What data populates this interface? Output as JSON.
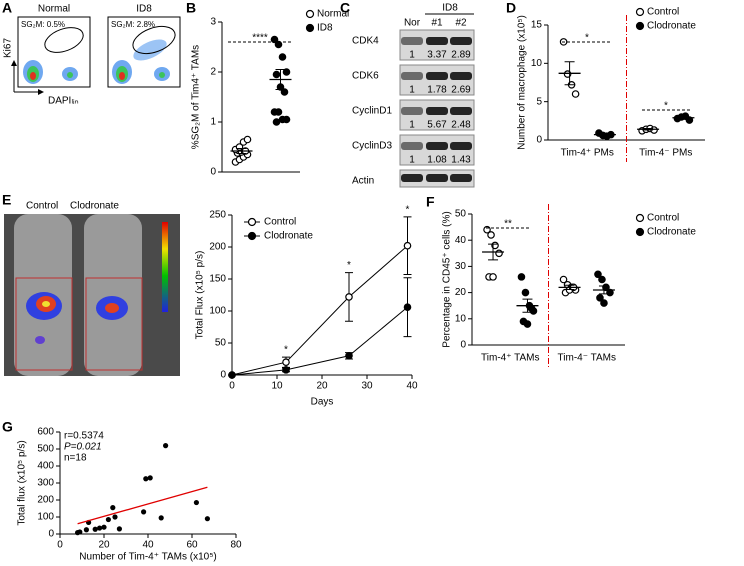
{
  "panel_labels": [
    "A",
    "B",
    "C",
    "D",
    "E",
    "F",
    "G"
  ],
  "flow": {
    "plots": [
      {
        "title": "Normal",
        "gate": "SG₂M: 0.5%"
      },
      {
        "title": "ID8",
        "gate": "SG₂M: 2.8%"
      }
    ],
    "y_label": "Ki67",
    "x_label": "DAPIₗᵢₙ"
  },
  "blot": {
    "group": "ID8",
    "lanes": [
      "Nor",
      "#1",
      "#2"
    ],
    "rows": [
      {
        "name": "CDK4",
        "quant": [
          1,
          3.37,
          2.89
        ]
      },
      {
        "name": "CDK6",
        "quant": [
          1,
          1.78,
          2.69
        ]
      },
      {
        "name": "CyclinD1",
        "quant": [
          1,
          5.67,
          2.48
        ]
      },
      {
        "name": "CyclinD3",
        "quant": [
          1,
          1.08,
          1.43
        ]
      },
      {
        "name": "Actin"
      }
    ]
  },
  "imaging": {
    "labels": [
      "Control",
      "Clodronate"
    ]
  },
  "chart_data": [
    {
      "type": "dot",
      "ylabel": "%SG₂M of Tim4⁺ TAMs",
      "ylim": [
        0,
        3
      ],
      "yticks": [
        0,
        1,
        2,
        3
      ],
      "annotations": [
        "****"
      ],
      "series": [
        {
          "name": "Normal",
          "color": "#000000",
          "filled": false,
          "values": [
            [
              0.2,
              0.25,
              0.3,
              0.35,
              0.38,
              0.4,
              0.42,
              0.45,
              0.5,
              0.6,
              0.65
            ]
          ],
          "means": [
            0.42
          ],
          "sems": [
            0.05
          ]
        },
        {
          "name": "ID8",
          "color": "#000000",
          "filled": true,
          "values": [
            [
              2.65,
              2.55,
              2.3,
              2.0,
              1.95,
              1.7,
              1.6,
              1.2,
              1.2,
              1.05,
              1.05,
              1.0
            ]
          ],
          "means": [
            1.85
          ],
          "sems": [
            0.2
          ]
        }
      ]
    },
    {
      "type": "dot",
      "ylabel": "Number of macrophage (x10⁵)",
      "ylim": [
        0,
        15
      ],
      "yticks": [
        0,
        5,
        10,
        15
      ],
      "categories": [
        "Tim-4⁺ PMs",
        "Tim-4⁻ PMs"
      ],
      "category_colors": [
        "#e00000",
        "#1a1aa0"
      ],
      "divider": true,
      "annotations": [
        "*",
        "*"
      ],
      "series": [
        {
          "name": "Control",
          "color": "#000000",
          "filled": false,
          "values": [
            [
              12.8,
              8.6,
              7.2,
              6.0
            ],
            [
              1.2,
              1.4,
              1.5,
              1.3
            ]
          ],
          "means": [
            8.7,
            1.4
          ],
          "sems": [
            1.5,
            0.1
          ]
        },
        {
          "name": "Clodronate",
          "color": "#000000",
          "filled": true,
          "values": [
            [
              0.9,
              0.6,
              0.5,
              0.7
            ],
            [
              2.8,
              3.0,
              3.1,
              2.6
            ]
          ],
          "means": [
            0.7,
            2.9
          ],
          "sems": [
            0.1,
            0.1
          ]
        }
      ]
    },
    {
      "type": "line",
      "xlabel": "Days",
      "ylabel": "Total Flux (x10⁵ p/s)",
      "x": [
        0,
        12,
        26,
        39
      ],
      "xlim": [
        0,
        40
      ],
      "xticks": [
        0,
        10,
        20,
        30,
        40
      ],
      "ylim": [
        0,
        250
      ],
      "yticks": [
        0,
        50,
        100,
        150,
        200,
        250
      ],
      "annotations": [
        "*",
        "*",
        "*"
      ],
      "series": [
        {
          "name": "Control",
          "color": "#000000",
          "filled": false,
          "values": [
            0,
            20,
            122,
            202
          ],
          "errors": [
            0,
            8,
            38,
            45
          ]
        },
        {
          "name": "Clodronate",
          "color": "#000000",
          "filled": true,
          "values": [
            0,
            8,
            30,
            106
          ],
          "errors": [
            0,
            3,
            5,
            46
          ]
        }
      ]
    },
    {
      "type": "dot",
      "ylabel": "Percentage in CD45⁺ cells (%)",
      "ylim": [
        0,
        50
      ],
      "yticks": [
        0,
        10,
        20,
        30,
        40,
        50
      ],
      "categories": [
        "Tim-4⁺ TAMs",
        "Tim-4⁻ TAMs"
      ],
      "category_colors": [
        "#e00000",
        "#1a1aa0"
      ],
      "divider": true,
      "annotations": [
        "**"
      ],
      "series": [
        {
          "name": "Control",
          "color": "#000000",
          "filled": false,
          "values": [
            [
              44,
              42,
              38,
              35,
              26,
              26
            ],
            [
              25,
              23,
              22,
              21,
              20,
              21,
              22
            ]
          ],
          "means": [
            35.5,
            22
          ],
          "sems": [
            3,
            0.8
          ]
        },
        {
          "name": "Clodronate",
          "color": "#000000",
          "filled": true,
          "values": [
            [
              26,
              20,
              15,
              13,
              9,
              8,
              14
            ],
            [
              27,
              25,
              22,
              20,
              18,
              16
            ]
          ],
          "means": [
            15,
            21
          ],
          "sems": [
            2.5,
            1.5
          ]
        }
      ]
    },
    {
      "type": "scatter",
      "xlabel": "Number of Tim-4⁺ TAMs (x10⁵)",
      "ylabel": "Total flux (x10⁵ p/s)",
      "xlim": [
        0,
        80
      ],
      "xticks": [
        0,
        20,
        40,
        60,
        80
      ],
      "ylim": [
        0,
        600
      ],
      "yticks": [
        0,
        100,
        200,
        300,
        400,
        500,
        600
      ],
      "annotations": [
        "r=0.5374",
        "P=0.021",
        "n=18"
      ],
      "color": "#000000",
      "x": [
        8,
        9,
        12,
        13,
        16,
        18,
        20,
        22,
        24,
        25,
        27,
        38,
        39,
        41,
        46,
        48,
        62,
        67
      ],
      "values": [
        8,
        12,
        25,
        68,
        28,
        35,
        40,
        85,
        155,
        100,
        30,
        130,
        325,
        330,
        95,
        520,
        185,
        90
      ],
      "trendline": {
        "color": "#e00000",
        "x": [
          8,
          67
        ],
        "values": [
          60,
          275
        ]
      }
    }
  ]
}
